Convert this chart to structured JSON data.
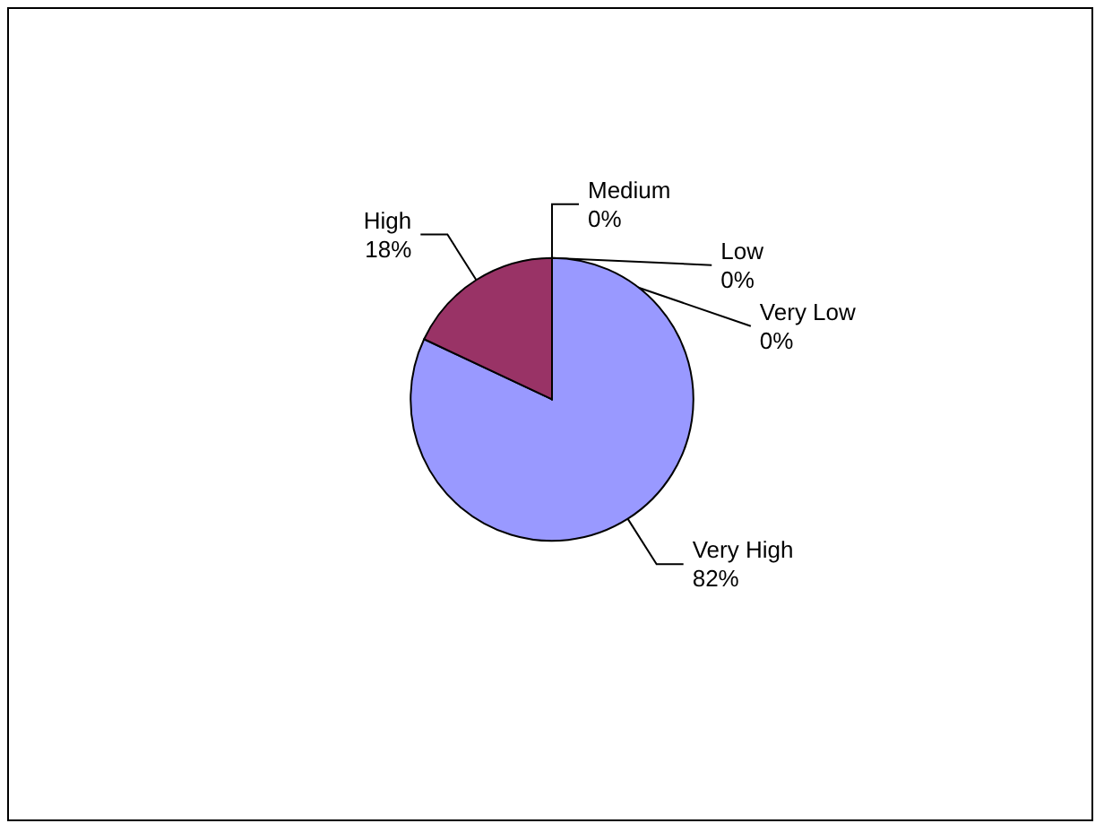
{
  "chart_data": {
    "type": "pie",
    "categories": [
      "Very High",
      "High",
      "Medium",
      "Low",
      "Very Low"
    ],
    "values": [
      82,
      18,
      0,
      0,
      0
    ],
    "value_labels": [
      "82%",
      "18%",
      "0%",
      "0%",
      "0%"
    ],
    "colors": [
      "#9999ff",
      "#993366",
      "#ffffcc",
      "#ccffff",
      "#660066"
    ],
    "legend": false
  }
}
